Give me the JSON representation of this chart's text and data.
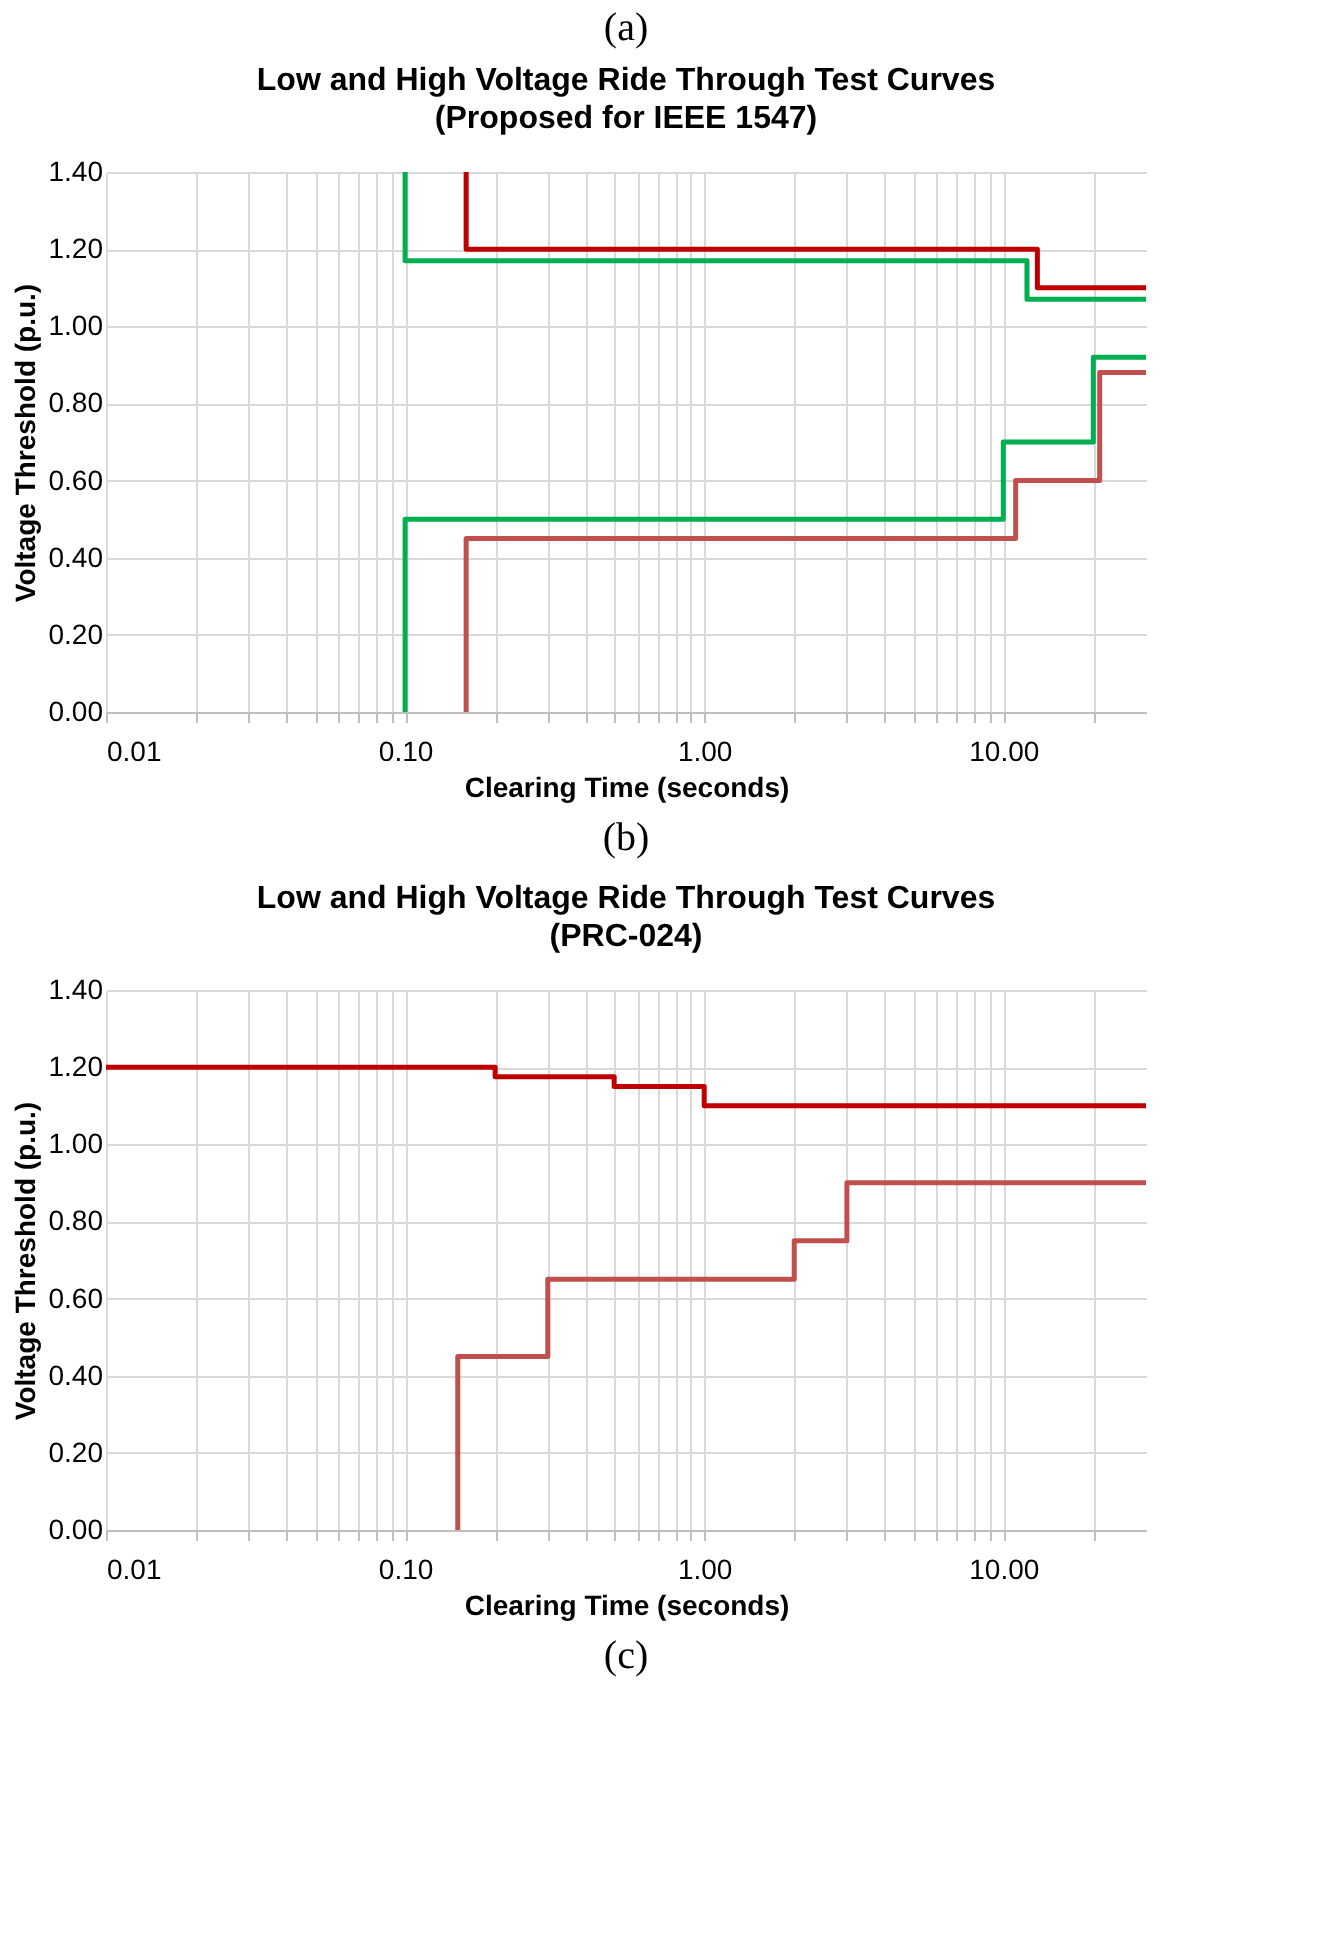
{
  "chart_data": [
    {
      "type": "step",
      "title": "Low and High Voltage Ride Through Test Curves",
      "subtitle": "(Proposed for IEEE 1547)",
      "xlabel": "Clearing Time (seconds)",
      "ylabel": "Voltage Threshold (p.u.)",
      "annotations": [
        "(a)",
        "(b)"
      ],
      "log": "x",
      "grid": true,
      "xlim": [
        0.01,
        30
      ],
      "ylim": [
        0,
        1.4
      ],
      "xticks": [
        {
          "value": 0.01,
          "label": "0.01"
        },
        {
          "value": 0.02,
          "label": null
        },
        {
          "value": 0.03,
          "label": null
        },
        {
          "value": 0.04,
          "label": null
        },
        {
          "value": 0.05,
          "label": null
        },
        {
          "value": 0.06,
          "label": null
        },
        {
          "value": 0.07,
          "label": null
        },
        {
          "value": 0.08,
          "label": null
        },
        {
          "value": 0.09,
          "label": null
        },
        {
          "value": 0.1,
          "label": "0.10"
        },
        {
          "value": 0.2,
          "label": null
        },
        {
          "value": 0.3,
          "label": null
        },
        {
          "value": 0.4,
          "label": null
        },
        {
          "value": 0.5,
          "label": null
        },
        {
          "value": 0.6,
          "label": null
        },
        {
          "value": 0.7,
          "label": null
        },
        {
          "value": 0.8,
          "label": null
        },
        {
          "value": 0.9,
          "label": null
        },
        {
          "value": 1,
          "label": "1.00"
        },
        {
          "value": 2,
          "label": null
        },
        {
          "value": 3,
          "label": null
        },
        {
          "value": 4,
          "label": null
        },
        {
          "value": 5,
          "label": null
        },
        {
          "value": 6,
          "label": null
        },
        {
          "value": 7,
          "label": null
        },
        {
          "value": 8,
          "label": null
        },
        {
          "value": 9,
          "label": null
        },
        {
          "value": 10,
          "label": "10.00"
        },
        {
          "value": 20,
          "label": null
        }
      ],
      "yticks": [
        {
          "value": 0,
          "label": "0.00"
        },
        {
          "value": 0.2,
          "label": "0.20"
        },
        {
          "value": 0.4,
          "label": "0.40"
        },
        {
          "value": 0.6,
          "label": "0.60"
        },
        {
          "value": 0.8,
          "label": "0.80"
        },
        {
          "value": 1.0,
          "label": "1.00"
        },
        {
          "value": 1.2,
          "label": "1.20"
        },
        {
          "value": 1.4,
          "label": "1.40"
        }
      ],
      "series": [
        {
          "color": "#c00000",
          "x": [
            0.16,
            0.16,
            13,
            30
          ],
          "values": [
            1.4,
            1.2,
            1.1,
            1.1
          ]
        },
        {
          "color": "#00b050",
          "x": [
            0.1,
            0.1,
            12,
            30
          ],
          "values": [
            1.4,
            1.17,
            1.07,
            1.07
          ]
        },
        {
          "color": "#00b050",
          "x": [
            0.1,
            0.1,
            10,
            20,
            30
          ],
          "values": [
            0,
            0.5,
            0.7,
            0.92,
            0.92
          ]
        },
        {
          "color": "#c0504d",
          "x": [
            0.16,
            0.16,
            11,
            21,
            30
          ],
          "values": [
            0,
            0.45,
            0.6,
            0.88,
            0.88
          ]
        }
      ]
    },
    {
      "type": "step",
      "title": "Low and High Voltage Ride Through Test Curves",
      "subtitle": "(PRC-024)",
      "xlabel": "Clearing Time (seconds)",
      "ylabel": "Voltage Threshold (p.u.)",
      "annotations": [
        "(c)"
      ],
      "log": "x",
      "grid": true,
      "xlim": [
        0.01,
        30
      ],
      "ylim": [
        0,
        1.4
      ],
      "xticks": [
        {
          "value": 0.01,
          "label": "0.01"
        },
        {
          "value": 0.02,
          "label": null
        },
        {
          "value": 0.03,
          "label": null
        },
        {
          "value": 0.04,
          "label": null
        },
        {
          "value": 0.05,
          "label": null
        },
        {
          "value": 0.06,
          "label": null
        },
        {
          "value": 0.07,
          "label": null
        },
        {
          "value": 0.08,
          "label": null
        },
        {
          "value": 0.09,
          "label": null
        },
        {
          "value": 0.1,
          "label": "0.10"
        },
        {
          "value": 0.2,
          "label": null
        },
        {
          "value": 0.3,
          "label": null
        },
        {
          "value": 0.4,
          "label": null
        },
        {
          "value": 0.5,
          "label": null
        },
        {
          "value": 0.6,
          "label": null
        },
        {
          "value": 0.7,
          "label": null
        },
        {
          "value": 0.8,
          "label": null
        },
        {
          "value": 0.9,
          "label": null
        },
        {
          "value": 1,
          "label": "1.00"
        },
        {
          "value": 2,
          "label": null
        },
        {
          "value": 3,
          "label": null
        },
        {
          "value": 4,
          "label": null
        },
        {
          "value": 5,
          "label": null
        },
        {
          "value": 6,
          "label": null
        },
        {
          "value": 7,
          "label": null
        },
        {
          "value": 8,
          "label": null
        },
        {
          "value": 9,
          "label": null
        },
        {
          "value": 10,
          "label": "10.00"
        },
        {
          "value": 20,
          "label": null
        }
      ],
      "yticks": [
        {
          "value": 0,
          "label": "0.00"
        },
        {
          "value": 0.2,
          "label": "0.20"
        },
        {
          "value": 0.4,
          "label": "0.40"
        },
        {
          "value": 0.6,
          "label": "0.60"
        },
        {
          "value": 0.8,
          "label": "0.80"
        },
        {
          "value": 1.0,
          "label": "1.00"
        },
        {
          "value": 1.2,
          "label": "1.20"
        },
        {
          "value": 1.4,
          "label": "1.40"
        }
      ],
      "series": [
        {
          "color": "#c00000",
          "x": [
            0.01,
            0.2,
            0.5,
            1,
            30
          ],
          "values": [
            1.2,
            1.175,
            1.15,
            1.1,
            1.1
          ]
        },
        {
          "color": "#c0504d",
          "x": [
            0.15,
            0.15,
            0.3,
            2,
            3,
            30
          ],
          "values": [
            0,
            0.45,
            0.65,
            0.75,
            0.9,
            0.9
          ]
        }
      ]
    }
  ]
}
